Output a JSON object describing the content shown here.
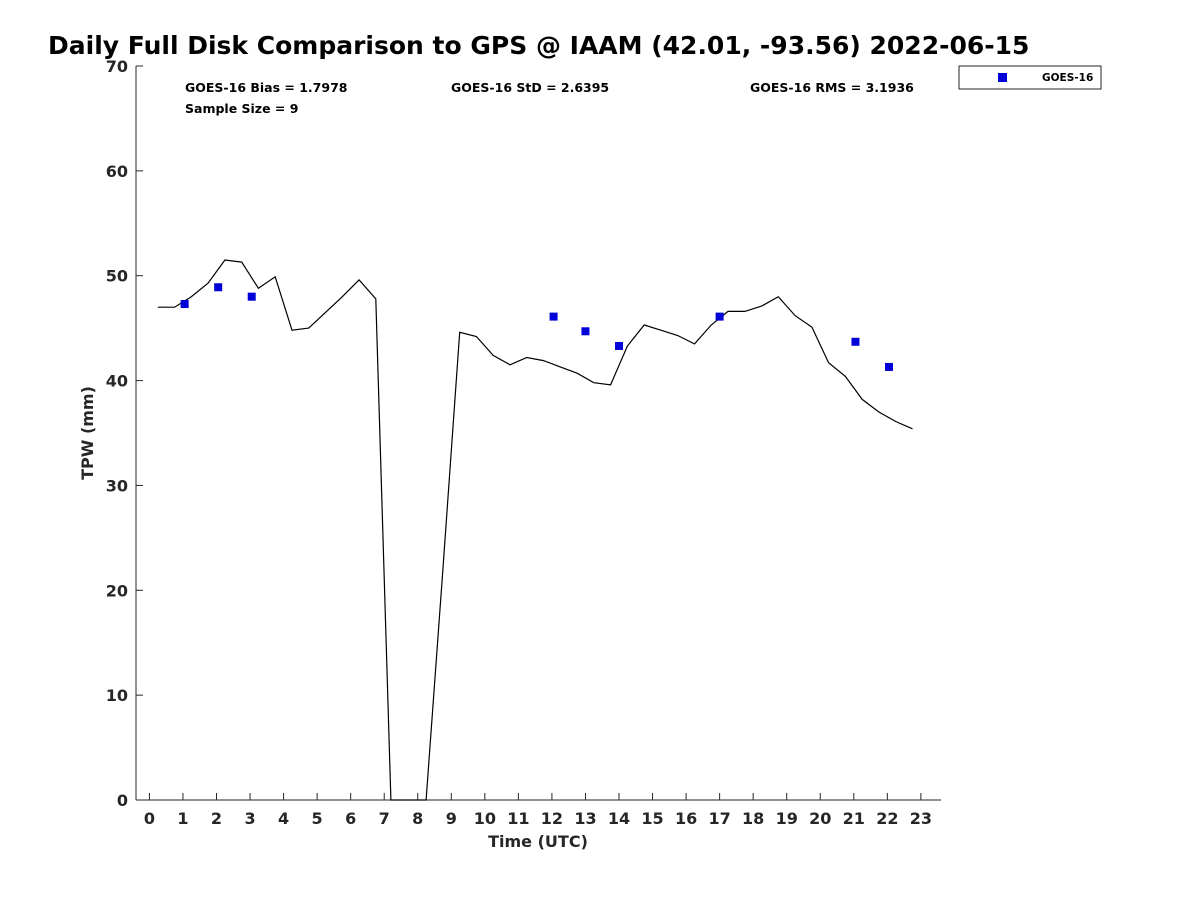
{
  "chart_data": {
    "type": "line",
    "title": "Daily Full Disk Comparison to GPS @ IAAM (42.01, -93.56) 2022-06-15",
    "xlabel": "Time (UTC)",
    "ylabel": "TPW (mm)",
    "xlim": [
      -0.4,
      23.6
    ],
    "ylim": [
      0,
      70
    ],
    "xticks": [
      0,
      1,
      2,
      3,
      4,
      5,
      6,
      7,
      8,
      9,
      10,
      11,
      12,
      13,
      14,
      15,
      16,
      17,
      18,
      19,
      20,
      21,
      22,
      23
    ],
    "yticks": [
      0,
      10,
      20,
      30,
      40,
      50,
      60,
      70
    ],
    "stats": {
      "bias": "GOES-16 Bias = 1.7978",
      "std": "GOES-16 StD = 2.6395",
      "rms": "GOES-16 RMS = 3.1936",
      "sample": "Sample Size = 9"
    },
    "legend": {
      "position": "top-right",
      "label": "GOES-16",
      "color": "#0000d9"
    },
    "series": [
      {
        "name": "GPS",
        "type": "line",
        "color": "#000000",
        "x": [
          0.25,
          0.75,
          1.25,
          1.75,
          2.25,
          2.75,
          3.25,
          3.75,
          4.25,
          4.75,
          5.25,
          5.75,
          6.25,
          6.75,
          7.2,
          8.0,
          8.25,
          8.75,
          9.25,
          9.75,
          10.25,
          10.75,
          11.25,
          11.75,
          12.25,
          12.75,
          13.25,
          13.75,
          14.25,
          14.75,
          15.25,
          15.75,
          16.25,
          16.75,
          17.25,
          17.75,
          18.25,
          18.75,
          19.25,
          19.75,
          20.25,
          20.75,
          21.25,
          21.75,
          22.25,
          22.75
        ],
        "y": [
          47.0,
          47.0,
          48.0,
          49.3,
          51.5,
          51.3,
          48.8,
          49.9,
          44.8,
          45.0,
          46.5,
          48.0,
          49.6,
          47.8,
          0.0,
          0.0,
          0.0,
          22.0,
          44.6,
          44.2,
          42.4,
          41.5,
          42.2,
          41.9,
          41.3,
          40.7,
          39.8,
          39.6,
          43.3,
          45.3,
          44.8,
          44.3,
          43.5,
          45.3,
          46.6,
          46.6,
          47.1,
          48.0,
          46.2,
          45.1,
          41.7,
          40.4,
          38.2,
          37.0,
          36.1,
          35.4
        ]
      },
      {
        "name": "GOES-16",
        "type": "scatter",
        "color": "#0000d9",
        "x": [
          1.05,
          2.05,
          3.05,
          12.05,
          13.0,
          14.0,
          17.0,
          21.05,
          22.05
        ],
        "y": [
          47.3,
          48.9,
          48.0,
          46.1,
          44.7,
          43.3,
          46.1,
          43.7,
          41.3
        ]
      }
    ]
  }
}
